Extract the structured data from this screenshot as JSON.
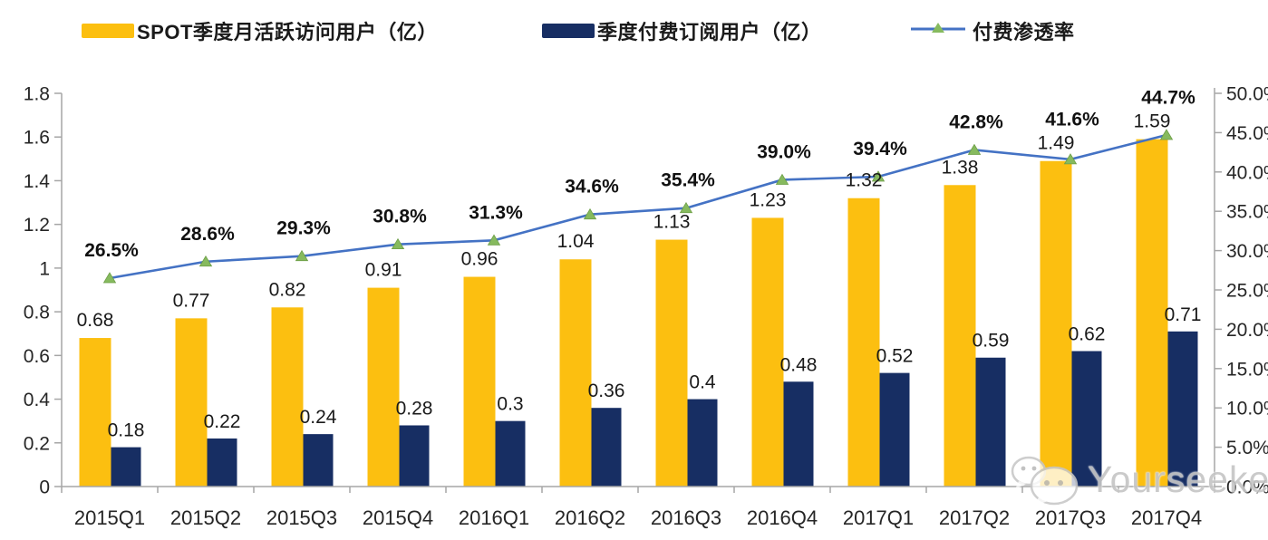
{
  "legend": [
    {
      "label": "SPOT季度月活跃访问用户（亿）",
      "swatch": "bar",
      "color": "#FCBF10"
    },
    {
      "label": "季度付费订阅用户（亿）",
      "swatch": "bar",
      "color": "#172E63"
    },
    {
      "label": "付费渗透率",
      "swatch": "line-triangle",
      "line_color": "#4472C4",
      "marker_color": "#86BA5E"
    }
  ],
  "watermark": {
    "text": "Yourseeker",
    "icon": "wechat-icon"
  },
  "chart_data": {
    "type": "combo-bar-line",
    "categories": [
      "2015Q1",
      "2015Q2",
      "2015Q3",
      "2015Q4",
      "2016Q1",
      "2016Q2",
      "2016Q3",
      "2016Q4",
      "2017Q1",
      "2017Q2",
      "2017Q3",
      "2017Q4"
    ],
    "series": [
      {
        "name": "SPOT季度月活跃访问用户（亿）",
        "type": "bar",
        "axis": "left",
        "color": "#FCBF10",
        "values": [
          0.68,
          0.77,
          0.82,
          0.91,
          0.96,
          1.04,
          1.13,
          1.23,
          1.32,
          1.38,
          1.49,
          1.59
        ],
        "labels": [
          "0.68",
          "0.77",
          "0.82",
          "0.91",
          "0.96",
          "1.04",
          "1.13",
          "1.23",
          "1.32",
          "1.38",
          "1.49",
          "1.59"
        ]
      },
      {
        "name": "季度付费订阅用户（亿）",
        "type": "bar",
        "axis": "left",
        "color": "#172E63",
        "values": [
          0.18,
          0.22,
          0.24,
          0.28,
          0.3,
          0.36,
          0.4,
          0.48,
          0.52,
          0.59,
          0.62,
          0.71
        ],
        "labels": [
          "0.18",
          "0.22",
          "0.24",
          "0.28",
          "0.3",
          "0.36",
          "0.4",
          "0.48",
          "0.52",
          "0.59",
          "0.62",
          "0.71"
        ]
      },
      {
        "name": "付费渗透率",
        "type": "line",
        "axis": "right",
        "line_color": "#4472C4",
        "marker_color": "#86BA5E",
        "values": [
          26.5,
          28.6,
          29.3,
          30.8,
          31.3,
          34.6,
          35.4,
          39.0,
          39.4,
          42.8,
          41.6,
          44.7
        ],
        "labels": [
          "26.5%",
          "28.6%",
          "29.3%",
          "30.8%",
          "31.3%",
          "34.6%",
          "35.4%",
          "39.0%",
          "39.4%",
          "42.8%",
          "41.6%",
          "44.7%"
        ]
      }
    ],
    "left_axis": {
      "min": 0,
      "max": 1.8,
      "ticks": [
        "0",
        "0.2",
        "0.4",
        "0.6",
        "0.8",
        "1",
        "1.2",
        "1.4",
        "1.6",
        "1.8"
      ]
    },
    "right_axis": {
      "min": 0,
      "max": 50,
      "ticks": [
        "0.0%",
        "5.0%",
        "10.0%",
        "15.0%",
        "20.0%",
        "25.0%",
        "30.0%",
        "35.0%",
        "40.0%",
        "45.0%",
        "50.0%"
      ]
    },
    "grid": false,
    "legend_position": "top",
    "axis_color": "#A6A6A6"
  }
}
